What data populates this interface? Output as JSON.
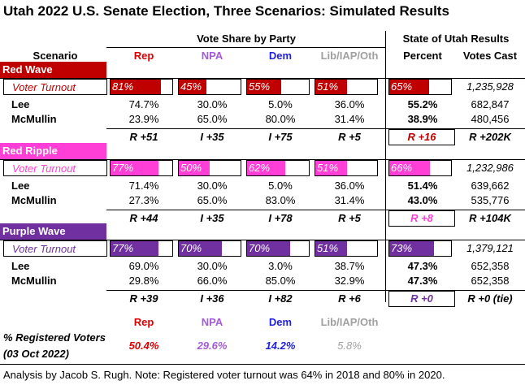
{
  "title": "Utah 2022 U.S. Senate Election, Three Scenarios: Simulated Results",
  "headers": {
    "vote_share": "Vote Share by Party",
    "state_results": "State of Utah Results",
    "scenario": "Scenario",
    "rep": "Rep",
    "npa": "NPA",
    "dem": "Dem",
    "lib": "Lib/IAP/Oth",
    "percent": "Percent",
    "votes_cast": "Votes Cast"
  },
  "colors": {
    "rep": "#e00000",
    "npa": "#a35bd6",
    "dem": "#1f1fe0",
    "lib": "#a0a0a0",
    "red_wave": "#c00000",
    "red_ripple": "#ff3fd6",
    "purple_wave": "#7030a0"
  },
  "scenarios": [
    {
      "name": "Red Wave",
      "color": "#c00000",
      "turnout_label": "Voter Turnout",
      "turnout": [
        "81%",
        "45%",
        "55%",
        "51%",
        "65%"
      ],
      "turnout_values": [
        0.81,
        0.45,
        0.55,
        0.51,
        0.65
      ],
      "turnout_votes": "1,235,928",
      "lee": {
        "name": "Lee",
        "rep": "74.7%",
        "npa": "30.0%",
        "dem": "5.0%",
        "lib": "36.0%",
        "pct": "55.2%",
        "votes": "682,847"
      },
      "mcmullin": {
        "name": "McMullin",
        "rep": "23.9%",
        "npa": "65.0%",
        "dem": "80.0%",
        "lib": "31.4%",
        "pct": "38.9%",
        "votes": "480,456"
      },
      "margins": {
        "rep": "R +51",
        "npa": "I +35",
        "dem": "I +75",
        "lib": "R +5",
        "pct": "R +16",
        "votes": "R +202K"
      }
    },
    {
      "name": "Red Ripple",
      "color": "#ff3fd6",
      "turnout_label": "Voter Turnout",
      "turnout": [
        "77%",
        "50%",
        "62%",
        "51%",
        "66%"
      ],
      "turnout_values": [
        0.77,
        0.5,
        0.62,
        0.51,
        0.66
      ],
      "turnout_votes": "1,232,986",
      "lee": {
        "name": "Lee",
        "rep": "71.4%",
        "npa": "30.0%",
        "dem": "5.0%",
        "lib": "36.0%",
        "pct": "51.4%",
        "votes": "639,662"
      },
      "mcmullin": {
        "name": "McMullin",
        "rep": "27.3%",
        "npa": "65.0%",
        "dem": "83.0%",
        "lib": "31.4%",
        "pct": "43.0%",
        "votes": "535,776"
      },
      "margins": {
        "rep": "R +44",
        "npa": "I +35",
        "dem": "I +78",
        "lib": "R +5",
        "pct": "R +8",
        "votes": "R +104K"
      }
    },
    {
      "name": "Purple Wave",
      "color": "#7030a0",
      "turnout_label": "Voter Turnout",
      "turnout": [
        "77%",
        "70%",
        "70%",
        "51%",
        "73%"
      ],
      "turnout_values": [
        0.77,
        0.7,
        0.7,
        0.51,
        0.73
      ],
      "turnout_votes": "1,379,121",
      "lee": {
        "name": "Lee",
        "rep": "69.0%",
        "npa": "30.0%",
        "dem": "3.0%",
        "lib": "38.7%",
        "pct": "47.3%",
        "votes": "652,358"
      },
      "mcmullin": {
        "name": "McMullin",
        "rep": "29.8%",
        "npa": "66.0%",
        "dem": "85.0%",
        "lib": "32.9%",
        "pct": "47.3%",
        "votes": "652,358"
      },
      "margins": {
        "rep": "R +39",
        "npa": "I +36",
        "dem": "I +82",
        "lib": "R +6",
        "pct": "R +0",
        "votes": "R +0 (tie)"
      }
    }
  ],
  "registered": {
    "label_line1": "% Registered Voters",
    "label_line2": "(03 Oct 2022)",
    "rep_header": "Rep",
    "npa_header": "NPA",
    "dem_header": "Dem",
    "lib_header": "Lib/IAP/Oth",
    "rep": "50.4%",
    "npa": "29.6%",
    "dem": "14.2%",
    "lib": "5.8%"
  },
  "footnote": "Analysis by Jacob S. Rugh. Note: Registered voter turnout was 64% in 2018 and 80% in 2020."
}
